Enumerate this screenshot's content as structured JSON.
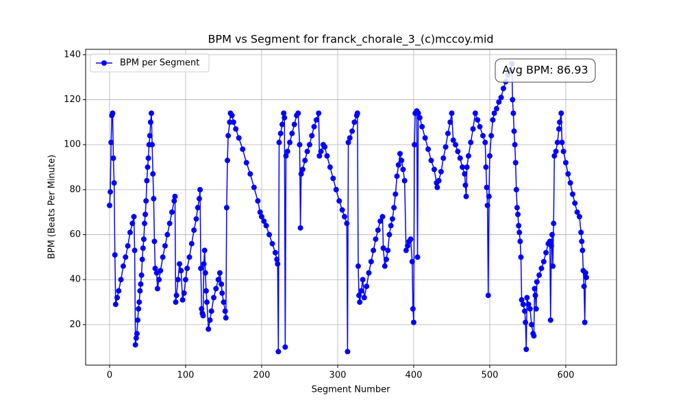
{
  "chart_data": {
    "type": "line",
    "title": "BPM vs Segment for franck_chorale_3_(c)mccoy.mid",
    "x_label": "Segment Number",
    "y_label": "BPM (Beats Per Minute)",
    "annotation": "Avg BPM: 86.93",
    "xlim": [
      -31.5,
      666.7
    ],
    "ylim": [
      2,
      142.4
    ],
    "xticks": [
      0,
      100,
      200,
      300,
      400,
      500,
      600
    ],
    "yticks": [
      20,
      40,
      60,
      80,
      100,
      120,
      140
    ],
    "grid": true,
    "legend": "upper left",
    "series": [
      {
        "name": "BPM per Segment",
        "color": "#0000ff",
        "x": [
          0,
          1,
          2,
          3,
          4,
          5,
          6,
          7,
          8,
          10,
          12,
          15,
          18,
          21,
          24,
          27,
          30,
          32,
          33,
          34,
          35,
          36,
          37,
          38,
          39,
          40,
          41,
          42,
          43,
          44,
          45,
          46,
          47,
          48,
          49,
          50,
          51,
          52,
          53,
          54,
          55,
          56,
          57,
          58,
          59,
          60,
          62,
          63,
          65,
          67,
          70,
          73,
          76,
          79,
          82,
          85,
          86,
          87,
          88,
          90,
          92,
          94,
          96,
          98,
          100,
          102,
          105,
          108,
          111,
          114,
          116,
          118,
          119,
          120,
          121,
          122,
          123,
          124,
          125,
          126,
          127,
          128,
          130,
          132,
          134,
          137,
          140,
          143,
          145,
          147,
          148,
          150,
          152,
          153,
          154,
          155,
          156,
          158,
          159,
          161,
          163,
          166,
          170,
          175,
          180,
          185,
          190,
          195,
          198,
          200,
          203,
          206,
          210,
          214,
          218,
          220,
          221,
          222,
          223,
          225,
          227,
          229,
          230,
          231,
          232,
          234,
          237,
          240,
          243,
          246,
          248,
          250,
          251,
          252,
          254,
          257,
          260,
          263,
          266,
          269,
          272,
          275,
          276,
          278,
          281,
          283,
          286,
          290,
          294,
          298,
          302,
          306,
          309,
          312,
          313,
          314,
          316,
          319,
          322,
          325,
          326,
          327,
          328,
          329,
          331,
          333,
          335,
          338,
          341,
          344,
          347,
          350,
          353,
          356,
          359,
          360,
          362,
          364,
          366,
          368,
          370,
          372,
          374,
          376,
          378,
          380,
          382,
          384,
          386,
          388,
          390,
          392,
          394,
          396,
          398,
          399,
          400,
          401,
          402,
          404,
          405,
          406,
          408,
          411,
          415,
          419,
          423,
          427,
          430,
          431,
          433,
          436,
          439,
          442,
          445,
          448,
          450,
          452,
          455,
          458,
          461,
          464,
          467,
          468,
          469,
          470,
          472,
          475,
          478,
          481,
          484,
          487,
          491,
          494,
          495,
          496,
          497,
          498,
          499,
          500,
          502,
          504,
          506,
          509,
          512,
          515,
          518,
          521,
          524,
          527,
          529,
          530,
          531,
          532,
          533,
          534,
          535,
          536,
          537,
          538,
          539,
          540,
          541,
          542,
          544,
          546,
          547,
          548,
          549,
          551,
          553,
          555,
          557,
          558,
          559,
          560,
          561,
          562,
          565,
          568,
          571,
          574,
          577,
          579,
          580,
          581,
          582,
          583,
          584,
          585,
          587,
          589,
          591,
          592,
          594,
          595,
          597,
          600,
          603,
          606,
          609,
          612,
          615,
          618,
          620,
          621,
          622,
          623,
          624,
          625,
          626,
          627
        ],
        "values": [
          73,
          79,
          101,
          113,
          114,
          94,
          83,
          51,
          29,
          32,
          35,
          40,
          46,
          50,
          55,
          61,
          65,
          68,
          53,
          11,
          14,
          16,
          22,
          27,
          30,
          35,
          38,
          42,
          49,
          54,
          58,
          65,
          69,
          75,
          84,
          90,
          94,
          100,
          104,
          110,
          114,
          100,
          87,
          76,
          57,
          45,
          43,
          36,
          40,
          44,
          50,
          55,
          60,
          65,
          70,
          75,
          77,
          30,
          33,
          40,
          47,
          44,
          31,
          34,
          40,
          45,
          50,
          56,
          62,
          67,
          72,
          76,
          80,
          45,
          27,
          25,
          24,
          47,
          53,
          43,
          35,
          30,
          18,
          22,
          26,
          32,
          36,
          40,
          43,
          38,
          34,
          30,
          26,
          23,
          72,
          93,
          104,
          110,
          114,
          113,
          110,
          107,
          103,
          98,
          92,
          87,
          81,
          75,
          70,
          68,
          66,
          64,
          60,
          56,
          52,
          49,
          47,
          8,
          101,
          105,
          109,
          114,
          112,
          10,
          95,
          97,
          101,
          105,
          109,
          113,
          114,
          100,
          63,
          87,
          89,
          93,
          97,
          100,
          104,
          108,
          111,
          114,
          95,
          97,
          100,
          99,
          95,
          90,
          85,
          80,
          75,
          71,
          68,
          65,
          8,
          101,
          103,
          106,
          110,
          113,
          114,
          46,
          33,
          30,
          35,
          40,
          32,
          37,
          43,
          48,
          53,
          58,
          62,
          66,
          68,
          54,
          46,
          49,
          53,
          60,
          64,
          67,
          72,
          78,
          86,
          91,
          96,
          93,
          89,
          84,
          53,
          55,
          57,
          58,
          48,
          27,
          21,
          100,
          114,
          115,
          50,
          114,
          112,
          108,
          103,
          98,
          93,
          89,
          83,
          81,
          84,
          88,
          94,
          99,
          105,
          110,
          114,
          102,
          100,
          97,
          94,
          90,
          87,
          82,
          77,
          90,
          95,
          101,
          107,
          114,
          111,
          108,
          104,
          101,
          90,
          81,
          73,
          33,
          77,
          95,
          104,
          111,
          114,
          116,
          119,
          121,
          125,
          128,
          131,
          133,
          136,
          120,
          114,
          106,
          100,
          92,
          80,
          72,
          69,
          64,
          61,
          57,
          50,
          31,
          29,
          26,
          21,
          9,
          32,
          29,
          27,
          20,
          16,
          15,
          36,
          33,
          27,
          39,
          42,
          45,
          48,
          52,
          56,
          57,
          22,
          55,
          60,
          46,
          65,
          95,
          97,
          101,
          107,
          110,
          114,
          101,
          97,
          92,
          87,
          83,
          78,
          74,
          70,
          68,
          61,
          57,
          53,
          44,
          37,
          21,
          43,
          41
        ]
      }
    ]
  }
}
